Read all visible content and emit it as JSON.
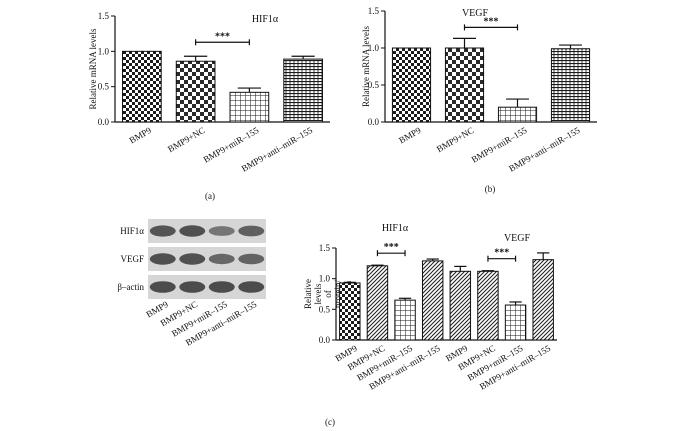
{
  "panel_labels": [
    "(a)",
    "(b)",
    "(c)"
  ],
  "fills": {
    "checker": "#1a1a1a",
    "dense_checker": "#2a2a2a",
    "grid": "#1a1a1a",
    "diag": "#1a1a1a",
    "horiz": "#1a1a1a",
    "band": "#3a3a3a",
    "blot_bg": "#d6d6d6"
  },
  "blot": {
    "rows": [
      "HIF1α",
      "VEGF",
      "β–actin"
    ],
    "lanes": [
      "BMP9",
      "BMP9+NC",
      "BMP9+miR–155",
      "BMP9+anti–miR–155"
    ],
    "intensity": [
      [
        0.8,
        0.85,
        0.45,
        0.7
      ],
      [
        0.85,
        0.85,
        0.6,
        0.65
      ],
      [
        0.9,
        0.9,
        0.9,
        0.9
      ]
    ]
  },
  "chart_data": [
    {
      "type": "bar",
      "title": "HIF1α",
      "ylabel": "Relative mRNA levels",
      "categories": [
        "BMP9",
        "BMP9+NC",
        "BMP9+miR–155",
        "BMP9+anti–miR–155"
      ],
      "values": [
        1.0,
        0.86,
        0.42,
        0.89
      ],
      "errors": [
        0,
        0.07,
        0.06,
        0.04
      ],
      "patterns": [
        "checker",
        "dense_checker",
        "grid",
        "horiz"
      ],
      "ylim": [
        0,
        1.5
      ],
      "yticks": [
        "0.0",
        "0.5",
        "1.0",
        "1.5"
      ],
      "significance": [
        {
          "from": 1,
          "to": 2,
          "label": "***"
        }
      ]
    },
    {
      "type": "bar",
      "title": "VEGF",
      "ylabel": "Relative mRNA levels",
      "categories": [
        "BMP9",
        "BMP9+NC",
        "BMP9+miR–155",
        "BMP9+anti–miR–155"
      ],
      "values": [
        1.0,
        1.0,
        0.2,
        0.99
      ],
      "errors": [
        0,
        0.13,
        0.11,
        0.05
      ],
      "patterns": [
        "checker",
        "dense_checker",
        "grid",
        "horiz"
      ],
      "ylim": [
        0,
        1.5
      ],
      "yticks": [
        "0.0",
        "0.5",
        "1.0",
        "1.5"
      ],
      "significance": [
        {
          "from": 1,
          "to": 2,
          "label": "***"
        }
      ]
    },
    {
      "type": "bar",
      "titles": [
        "HIF1α",
        "VEGF"
      ],
      "ylabel": "Relative levels of protein/ β–actin",
      "categories": [
        "BMP9",
        "BMP9+NC",
        "BMP9+miR–155",
        "BMP9+anti–miR–155",
        "BMP9",
        "BMP9+NC",
        "BMP9+miR–155",
        "BMP9+anti–miR–155"
      ],
      "values": [
        0.93,
        1.21,
        0.65,
        1.29,
        1.12,
        1.12,
        0.57,
        1.31
      ],
      "errors": [
        0.01,
        0.01,
        0.03,
        0.03,
        0.08,
        0.01,
        0.05,
        0.11
      ],
      "patterns": [
        "checker",
        "diag",
        "grid",
        "diag",
        "diag",
        "diag",
        "grid",
        "diag"
      ],
      "ylim": [
        0,
        1.5
      ],
      "yticks": [
        "0.0",
        "0.5",
        "1.0",
        "1.5"
      ],
      "significance": [
        {
          "from": 1,
          "to": 2,
          "label": "***"
        },
        {
          "from": 5,
          "to": 6,
          "label": "***"
        }
      ]
    }
  ]
}
